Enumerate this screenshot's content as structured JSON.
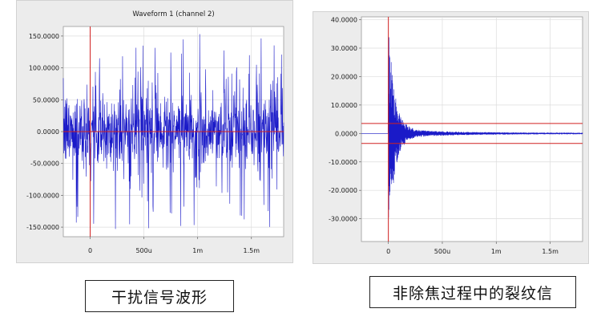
{
  "chart_data": [
    {
      "type": "line",
      "title": "Waveform 1 (channel 2)",
      "xlim": [
        -0.00025,
        0.0018
      ],
      "ylim": [
        -165,
        165
      ],
      "x_ticks": [
        {
          "value": 0,
          "label": "0"
        },
        {
          "value": 0.0005,
          "label": "500u"
        },
        {
          "value": 0.001,
          "label": "1m"
        },
        {
          "value": 0.0015,
          "label": "1.5m"
        }
      ],
      "y_ticks": [
        {
          "value": 150,
          "label": "150.0000"
        },
        {
          "value": 100,
          "label": "100.0000"
        },
        {
          "value": 50,
          "label": "50.0000"
        },
        {
          "value": 0,
          "label": "0.0000"
        },
        {
          "value": -50,
          "label": "-50.0000"
        },
        {
          "value": -100,
          "label": "-100.0000"
        },
        {
          "value": -150,
          "label": "-150.0000"
        }
      ],
      "grid": true,
      "reference_lines": {
        "vertical_x": 0,
        "horizontal_y": [
          0
        ]
      },
      "signal": {
        "kind": "interference noise",
        "typical_amplitude": 55,
        "peak_amplitude": 155,
        "x_start": -0.00025,
        "x_end": 0.0018
      },
      "colors": {
        "trace": "#1a1ac8",
        "reference": "#d02020",
        "grid": "#dcdcdc",
        "plot_bg": "#ffffff"
      }
    },
    {
      "type": "line",
      "title": "",
      "xlim": [
        -0.00025,
        0.0018
      ],
      "ylim": [
        -38,
        41
      ],
      "x_ticks": [
        {
          "value": 0,
          "label": "0"
        },
        {
          "value": 0.0005,
          "label": "500u"
        },
        {
          "value": 0.001,
          "label": "1m"
        },
        {
          "value": 0.0015,
          "label": "1.5m"
        }
      ],
      "y_ticks": [
        {
          "value": 40,
          "label": "40.0000"
        },
        {
          "value": 30,
          "label": "30.0000"
        },
        {
          "value": 20,
          "label": "20.0000"
        },
        {
          "value": 10,
          "label": "10.0000"
        },
        {
          "value": 0,
          "label": "0.0000"
        },
        {
          "value": -10,
          "label": "-10.0000"
        },
        {
          "value": -20,
          "label": "-20.0000"
        },
        {
          "value": -30,
          "label": "-30.0000"
        }
      ],
      "grid": true,
      "reference_lines": {
        "vertical_x": 0,
        "horizontal_y": [
          3.5,
          -3.5
        ]
      },
      "signal": {
        "kind": "decaying burst",
        "onset_x": 0,
        "peak_amplitude": 38,
        "x_start": 0,
        "x_end": 0.0018
      },
      "colors": {
        "trace": "#1a1ac8",
        "reference": "#d02020",
        "grid": "#dcdcdc",
        "plot_bg": "#ffffff"
      }
    }
  ],
  "captions": {
    "left": "干扰信号波形",
    "right": "非除焦过程中的裂纹信"
  }
}
